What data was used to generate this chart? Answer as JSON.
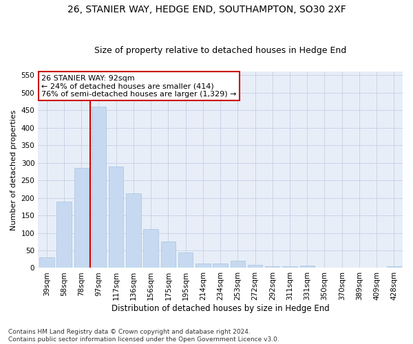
{
  "title": "26, STANIER WAY, HEDGE END, SOUTHAMPTON, SO30 2XF",
  "subtitle": "Size of property relative to detached houses in Hedge End",
  "xlabel": "Distribution of detached houses by size in Hedge End",
  "ylabel": "Number of detached properties",
  "categories": [
    "39sqm",
    "58sqm",
    "78sqm",
    "97sqm",
    "117sqm",
    "136sqm",
    "156sqm",
    "175sqm",
    "195sqm",
    "214sqm",
    "234sqm",
    "253sqm",
    "272sqm",
    "292sqm",
    "311sqm",
    "331sqm",
    "350sqm",
    "370sqm",
    "389sqm",
    "409sqm",
    "428sqm"
  ],
  "values": [
    30,
    190,
    285,
    460,
    290,
    213,
    110,
    75,
    45,
    13,
    13,
    20,
    9,
    5,
    5,
    6,
    0,
    0,
    0,
    0,
    5
  ],
  "bar_color": "#c6d9f0",
  "bar_edge_color": "#a8c4e0",
  "vline_x_idx": 2.5,
  "vline_color": "#cc0000",
  "annotation_line1": "26 STANIER WAY: 92sqm",
  "annotation_line2": "← 24% of detached houses are smaller (414)",
  "annotation_line3": "76% of semi-detached houses are larger (1,329) →",
  "annotation_box_color": "#ffffff",
  "annotation_box_edge": "#cc0000",
  "ylim": [
    0,
    560
  ],
  "yticks": [
    0,
    50,
    100,
    150,
    200,
    250,
    300,
    350,
    400,
    450,
    500,
    550
  ],
  "footer": "Contains HM Land Registry data © Crown copyright and database right 2024.\nContains public sector information licensed under the Open Government Licence v3.0.",
  "bg_color": "#ffffff",
  "plot_bg_color": "#e8eef8",
  "grid_color": "#c8d4e8",
  "title_fontsize": 10,
  "subtitle_fontsize": 9,
  "xlabel_fontsize": 8.5,
  "ylabel_fontsize": 8,
  "tick_fontsize": 7.5,
  "annotation_fontsize": 8,
  "footer_fontsize": 6.5
}
